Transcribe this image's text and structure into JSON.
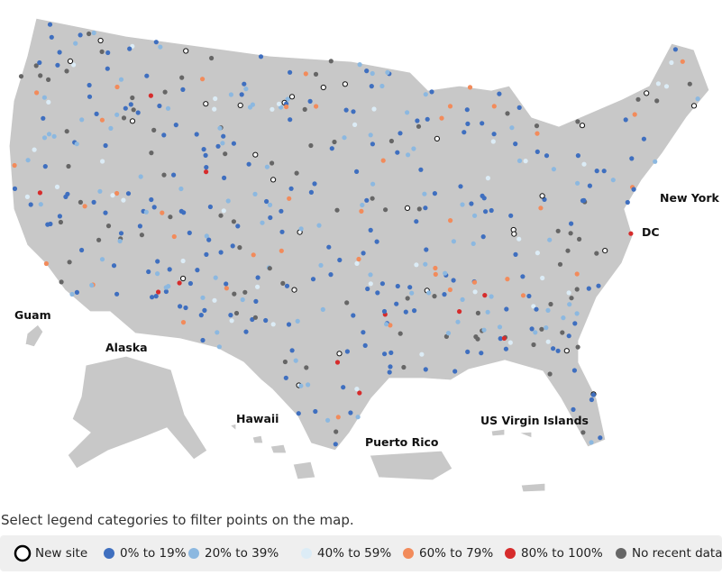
{
  "map": {
    "labels": [
      "Guam",
      "Alaska",
      "Hawaii",
      "Puerto Rico",
      "US Virgin Islands",
      "New York City",
      "DC"
    ]
  },
  "instruction": "Select legend categories to filter points on the map.",
  "legend": {
    "items": [
      {
        "label": "New site",
        "color": "#ffffff"
      },
      {
        "label": "0% to 19%",
        "color": "#3f6fbf"
      },
      {
        "label": "20% to 39%",
        "color": "#8cb8e0"
      },
      {
        "label": "40% to 59%",
        "color": "#dcecf6"
      },
      {
        "label": "60% to 79%",
        "color": "#f28b5b"
      },
      {
        "label": "80% to 100%",
        "color": "#d62c2c"
      },
      {
        "label": "No recent data",
        "color": "#666666"
      }
    ]
  }
}
